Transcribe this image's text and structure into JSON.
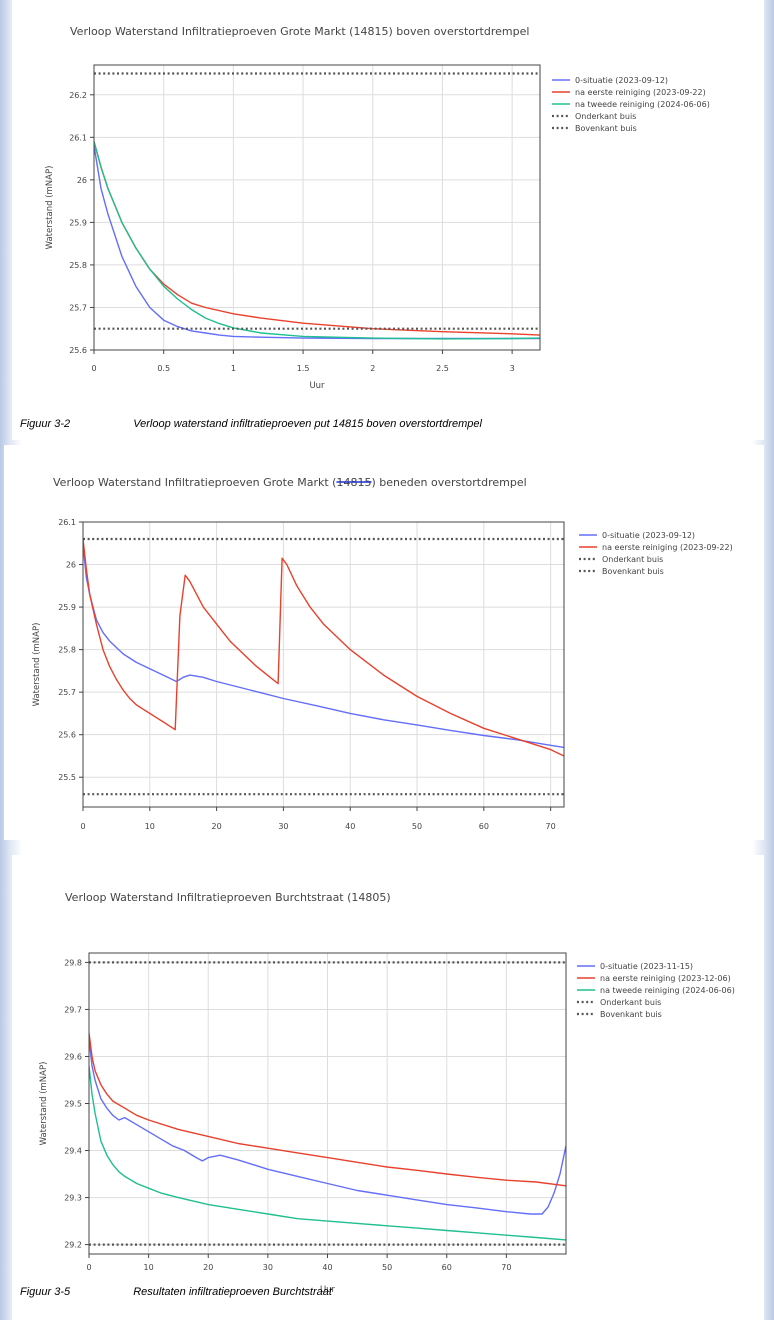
{
  "captions": [
    {
      "number": "Figuur 3-2",
      "text": "Verloop waterstand infiltratieproeven put 14815 boven overstortdrempel"
    },
    {
      "number": "Figuur 3-5",
      "text": "Resultaten infiltratieproeven Burchtstraat"
    }
  ],
  "chart2_title_parts": {
    "before": "Verloop Waterstand Infiltratieproeven Grote Markt (",
    "struck": "14815",
    "after": ") beneden overstortdrempel"
  },
  "colors": {
    "blue": "#636efa",
    "red": "#e8412c",
    "green": "#1fbf8f",
    "dotted": "#555555"
  },
  "chart_data": [
    {
      "type": "line",
      "title": "Verloop Waterstand Infiltratieproeven Grote Markt (14815) boven overstortdrempel",
      "xlabel": "Uur",
      "ylabel": "Waterstand (mNAP)",
      "xlim": [
        0,
        3.2
      ],
      "ylim": [
        25.6,
        26.27
      ],
      "xticks": [
        0,
        0.5,
        1,
        1.5,
        2,
        2.5,
        3
      ],
      "xtick_labels": [
        "0",
        "0.5",
        "1",
        "1.5",
        "2",
        "2.5",
        "3"
      ],
      "yticks": [
        25.6,
        25.7,
        25.8,
        25.9,
        26,
        26.1,
        26.2
      ],
      "ytick_labels": [
        "25.6",
        "25.7",
        "25.8",
        "25.9",
        "26",
        "26.1",
        "26.2"
      ],
      "legend_position": "right",
      "series": [
        {
          "name": "0-situatie (2023-09-12)",
          "color": "blue",
          "style": "solid",
          "x": [
            0,
            0.05,
            0.1,
            0.2,
            0.3,
            0.4,
            0.5,
            0.6,
            0.7,
            0.8,
            0.9,
            1.0,
            1.2,
            1.5,
            2.0,
            2.5,
            3.0,
            3.2
          ],
          "y": [
            26.08,
            25.98,
            25.92,
            25.82,
            25.75,
            25.7,
            25.67,
            25.655,
            25.645,
            25.64,
            25.635,
            25.632,
            25.63,
            25.628,
            25.627,
            25.627,
            25.627,
            25.627
          ]
        },
        {
          "name": "na eerste reiniging (2023-09-22)",
          "color": "red",
          "style": "solid",
          "x": [
            0,
            0.05,
            0.1,
            0.2,
            0.3,
            0.4,
            0.5,
            0.6,
            0.7,
            0.8,
            1.0,
            1.2,
            1.5,
            2.0,
            2.5,
            3.0,
            3.2
          ],
          "y": [
            26.09,
            26.03,
            25.98,
            25.9,
            25.84,
            25.79,
            25.755,
            25.73,
            25.71,
            25.7,
            25.685,
            25.675,
            25.663,
            25.65,
            25.643,
            25.638,
            25.635
          ]
        },
        {
          "name": "na tweede reiniging (2024-06-06)",
          "color": "green",
          "style": "solid",
          "x": [
            0,
            0.05,
            0.1,
            0.2,
            0.3,
            0.4,
            0.5,
            0.6,
            0.7,
            0.8,
            0.9,
            1.0,
            1.2,
            1.5,
            2.0,
            2.5,
            3.0,
            3.2
          ],
          "y": [
            26.09,
            26.03,
            25.98,
            25.9,
            25.84,
            25.79,
            25.75,
            25.72,
            25.695,
            25.675,
            25.662,
            25.652,
            25.64,
            25.632,
            25.628,
            25.626,
            25.627,
            25.628
          ]
        },
        {
          "name": "Onderkant buis",
          "color": "dotted",
          "style": "dotted",
          "x": [
            0,
            3.2
          ],
          "y": [
            25.65,
            25.65
          ]
        },
        {
          "name": "Bovenkant buis",
          "color": "dotted",
          "style": "dotted",
          "x": [
            0,
            3.2
          ],
          "y": [
            26.25,
            26.25
          ]
        }
      ]
    },
    {
      "type": "line",
      "title": "Verloop Waterstand Infiltratieproeven Grote Markt (14815) beneden overstortdrempel",
      "xlabel": "",
      "ylabel": "Waterstand (mNAP)",
      "xlim": [
        0,
        72
      ],
      "ylim": [
        25.43,
        26.1
      ],
      "xticks": [
        0,
        10,
        20,
        30,
        40,
        50,
        60,
        70
      ],
      "xtick_labels": [
        "0",
        "10",
        "20",
        "30",
        "40",
        "50",
        "60",
        "70"
      ],
      "yticks": [
        25.5,
        25.6,
        25.7,
        25.8,
        25.9,
        26,
        26.1
      ],
      "ytick_labels": [
        "25.5",
        "25.6",
        "25.7",
        "25.8",
        "25.9",
        "26",
        "26.1"
      ],
      "legend_position": "right",
      "series": [
        {
          "name": "0-situatie (2023-09-12)",
          "color": "blue",
          "style": "solid",
          "x": [
            0,
            0.5,
            1,
            2,
            3,
            4,
            6,
            8,
            10,
            12,
            14,
            15,
            16,
            18,
            20,
            25,
            30,
            35,
            40,
            45,
            50,
            55,
            60,
            65,
            70,
            72
          ],
          "y": [
            26.05,
            25.97,
            25.93,
            25.87,
            25.84,
            25.82,
            25.79,
            25.77,
            25.755,
            25.74,
            25.725,
            25.735,
            25.74,
            25.735,
            25.725,
            25.705,
            25.685,
            25.668,
            25.65,
            25.635,
            25.623,
            25.61,
            25.598,
            25.588,
            25.575,
            25.57
          ]
        },
        {
          "name": "na eerste reiniging (2023-09-22)",
          "color": "red",
          "style": "solid",
          "x": [
            0,
            0.5,
            1,
            2,
            3,
            4,
            5,
            6,
            7,
            8,
            9,
            10,
            11,
            12,
            13,
            13.8,
            14.5,
            15.3,
            16,
            17,
            18,
            20,
            22,
            24,
            26,
            28,
            29.2,
            29.8,
            30.5,
            32,
            34,
            36,
            38,
            40,
            45,
            50,
            55,
            60,
            65,
            70,
            72
          ],
          "y": [
            26.06,
            25.99,
            25.93,
            25.86,
            25.8,
            25.76,
            25.73,
            25.705,
            25.685,
            25.67,
            25.66,
            25.65,
            25.64,
            25.63,
            25.62,
            25.612,
            25.88,
            25.975,
            25.96,
            25.93,
            25.9,
            25.86,
            25.82,
            25.79,
            25.76,
            25.735,
            25.72,
            26.015,
            26.0,
            25.95,
            25.9,
            25.86,
            25.83,
            25.8,
            25.74,
            25.69,
            25.65,
            25.615,
            25.59,
            25.565,
            25.55
          ]
        },
        {
          "name": "Onderkant buis",
          "color": "dotted",
          "style": "dotted",
          "x": [
            0,
            72
          ],
          "y": [
            25.46,
            25.46
          ]
        },
        {
          "name": "Bovenkant buis",
          "color": "dotted",
          "style": "dotted",
          "x": [
            0,
            72
          ],
          "y": [
            26.06,
            26.06
          ]
        }
      ]
    },
    {
      "type": "line",
      "title": "Verloop Waterstand Infiltratieproeven Burchtstraat (14805)",
      "xlabel": "Uur",
      "ylabel": "Waterstand (mNAP)",
      "xlim": [
        0,
        80
      ],
      "ylim": [
        29.18,
        29.82
      ],
      "xticks": [
        0,
        10,
        20,
        30,
        40,
        50,
        60,
        70
      ],
      "xtick_labels": [
        "0",
        "10",
        "20",
        "30",
        "40",
        "50",
        "60",
        "70"
      ],
      "yticks": [
        29.2,
        29.3,
        29.4,
        29.5,
        29.6,
        29.7,
        29.8
      ],
      "ytick_labels": [
        "29.2",
        "29.3",
        "29.4",
        "29.5",
        "29.6",
        "29.7",
        "29.8"
      ],
      "legend_position": "right",
      "series": [
        {
          "name": "0-situatie (2023-11-15)",
          "color": "blue",
          "style": "solid",
          "x": [
            0,
            0.5,
            1,
            2,
            3,
            4,
            5,
            6,
            8,
            10,
            12,
            14,
            16,
            18,
            19,
            20,
            22,
            25,
            30,
            35,
            40,
            45,
            50,
            55,
            60,
            65,
            70,
            74,
            76,
            77,
            78,
            79,
            80
          ],
          "y": [
            29.64,
            29.58,
            29.55,
            29.51,
            29.49,
            29.475,
            29.465,
            29.47,
            29.455,
            29.44,
            29.425,
            29.41,
            29.4,
            29.385,
            29.378,
            29.385,
            29.39,
            29.38,
            29.36,
            29.345,
            29.33,
            29.315,
            29.305,
            29.295,
            29.285,
            29.278,
            29.27,
            29.265,
            29.265,
            29.28,
            29.31,
            29.35,
            29.41
          ]
        },
        {
          "name": "na eerste reiniging (2023-12-06)",
          "color": "red",
          "style": "solid",
          "x": [
            0,
            0.5,
            1,
            2,
            3,
            4,
            6,
            8,
            10,
            15,
            20,
            25,
            30,
            35,
            40,
            45,
            50,
            55,
            60,
            65,
            70,
            75,
            80
          ],
          "y": [
            29.65,
            29.6,
            29.57,
            29.54,
            29.52,
            29.505,
            29.49,
            29.475,
            29.465,
            29.445,
            29.43,
            29.415,
            29.405,
            29.395,
            29.385,
            29.375,
            29.365,
            29.358,
            29.35,
            29.343,
            29.337,
            29.333,
            29.325
          ]
        },
        {
          "name": "na tweede reiniging (2024-06-06)",
          "color": "green",
          "style": "solid",
          "x": [
            0,
            0.5,
            1,
            2,
            3,
            4,
            5,
            6,
            8,
            10,
            12,
            15,
            20,
            25,
            30,
            35,
            40,
            45,
            50,
            55,
            60,
            65,
            70,
            75,
            80
          ],
          "y": [
            29.58,
            29.52,
            29.48,
            29.42,
            29.39,
            29.37,
            29.355,
            29.345,
            29.33,
            29.32,
            29.31,
            29.3,
            29.285,
            29.275,
            29.265,
            29.255,
            29.25,
            29.245,
            29.24,
            29.235,
            29.23,
            29.225,
            29.22,
            29.215,
            29.21
          ]
        },
        {
          "name": "Onderkant buis",
          "color": "dotted",
          "style": "dotted",
          "x": [
            0,
            80
          ],
          "y": [
            29.2,
            29.2
          ]
        },
        {
          "name": "Bovenkant buis",
          "color": "dotted",
          "style": "dotted",
          "x": [
            0,
            80
          ],
          "y": [
            29.8,
            29.8
          ]
        }
      ]
    }
  ]
}
